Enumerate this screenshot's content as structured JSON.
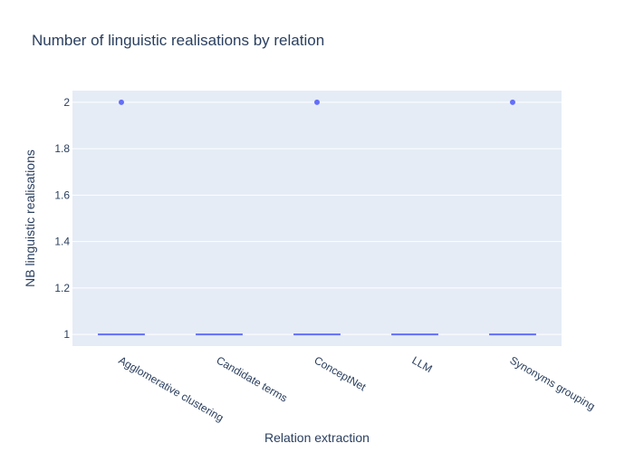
{
  "chart_data": {
    "type": "box",
    "title": "Number of linguistic realisations by relation",
    "xlabel": "Relation extraction",
    "ylabel": "NB linguistic realisations",
    "ylim": [
      0.95,
      2.05
    ],
    "yticks": [
      1,
      1.2,
      1.4,
      1.6,
      1.8,
      2
    ],
    "ytick_labels": [
      "1",
      "1.2",
      "1.4",
      "1.6",
      "1.8",
      "2"
    ],
    "grid": true,
    "categories": [
      "Agglomerative clustering",
      "Candidate terms",
      "ConceptNet",
      "LLM",
      "Synonyms grouping"
    ],
    "boxes": [
      {
        "category": "Agglomerative clustering",
        "q1": 1,
        "median": 1,
        "q3": 1,
        "whisker_low": 1,
        "whisker_high": 1,
        "outliers": [
          2
        ]
      },
      {
        "category": "Candidate terms",
        "q1": 1,
        "median": 1,
        "q3": 1,
        "whisker_low": 1,
        "whisker_high": 1,
        "outliers": []
      },
      {
        "category": "ConceptNet",
        "q1": 1,
        "median": 1,
        "q3": 1,
        "whisker_low": 1,
        "whisker_high": 1,
        "outliers": [
          2
        ]
      },
      {
        "category": "LLM",
        "q1": 1,
        "median": 1,
        "q3": 1,
        "whisker_low": 1,
        "whisker_high": 1,
        "outliers": []
      },
      {
        "category": "Synonyms grouping",
        "q1": 1,
        "median": 1,
        "q3": 1,
        "whisker_low": 1,
        "whisker_high": 1,
        "outliers": [
          2
        ]
      }
    ]
  },
  "colors": {
    "plot_background": "#e5ecf6",
    "grid": "#ffffff",
    "series": "#636efa",
    "text": "#2a3f5f"
  }
}
